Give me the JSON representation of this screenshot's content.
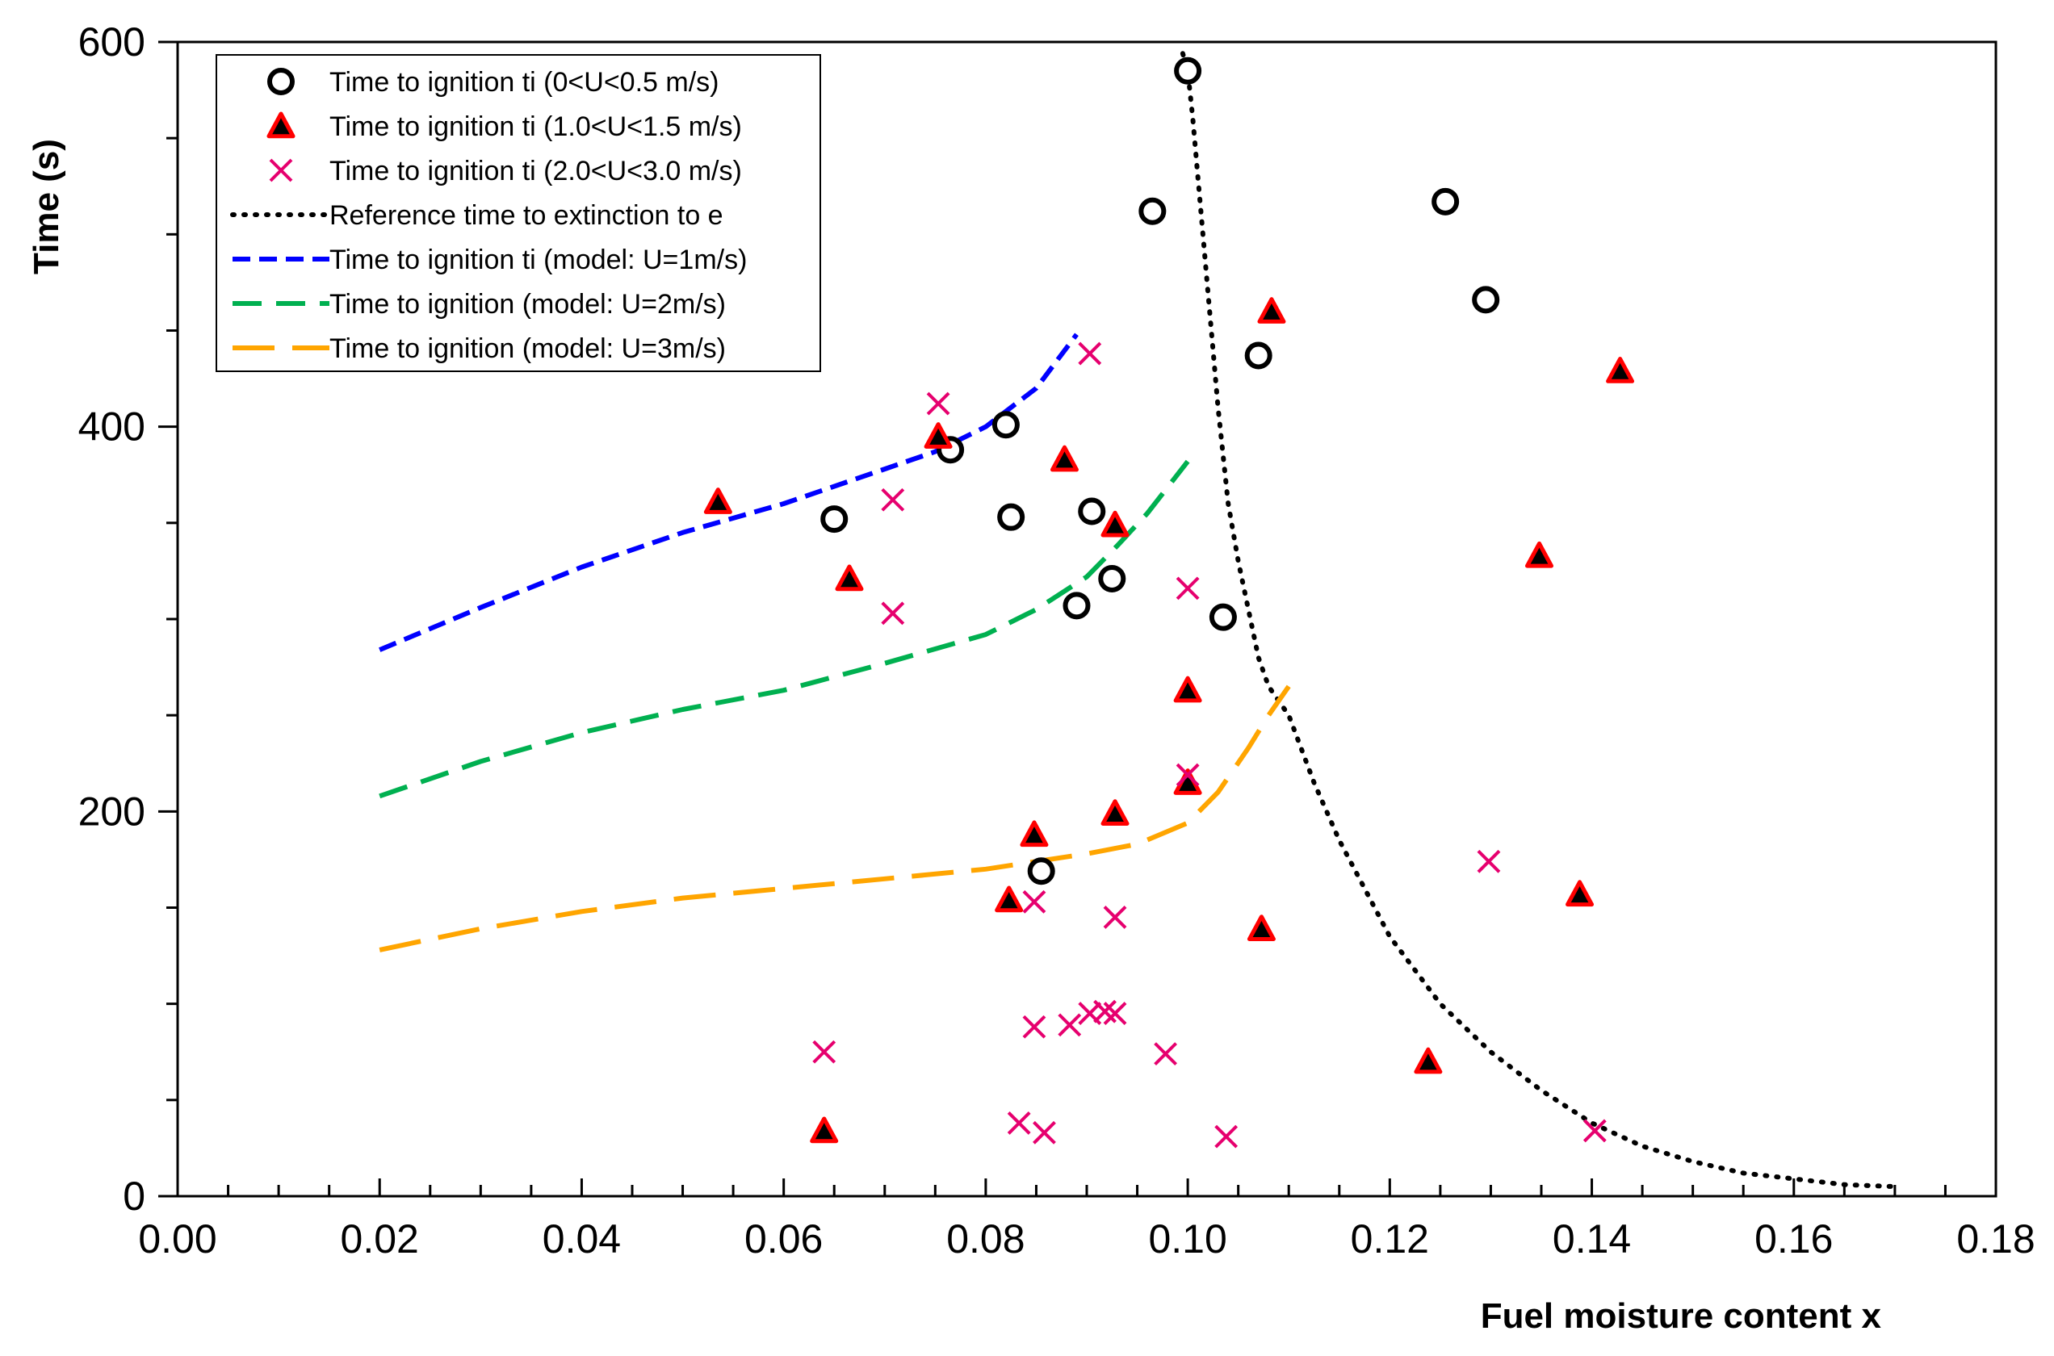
{
  "chart_data": {
    "type": "scatter",
    "title": "",
    "xlabel": "Fuel moisture content x",
    "ylabel": "Time (s)",
    "xlim": [
      0,
      0.18
    ],
    "ylim": [
      0,
      600
    ],
    "x_ticks": [
      "0.00",
      "0.02",
      "0.04",
      "0.06",
      "0.08",
      "0.10",
      "0.12",
      "0.14",
      "0.16",
      "0.18"
    ],
    "y_ticks": [
      "0",
      "200",
      "400",
      "600"
    ],
    "legend_position": "top-left",
    "series": [
      {
        "name": "Time to ignition ti (0<U<0.5 m/s)",
        "kind": "scatter",
        "marker": "circle",
        "color": "#000000",
        "points": [
          [
            0.065,
            352
          ],
          [
            0.0765,
            388
          ],
          [
            0.082,
            401
          ],
          [
            0.0825,
            353
          ],
          [
            0.0855,
            169
          ],
          [
            0.089,
            307
          ],
          [
            0.0905,
            356
          ],
          [
            0.0925,
            321
          ],
          [
            0.0965,
            512
          ],
          [
            0.1,
            585
          ],
          [
            0.1035,
            301
          ],
          [
            0.107,
            437
          ],
          [
            0.1255,
            517
          ],
          [
            0.1295,
            466
          ]
        ]
      },
      {
        "name": "Time to ignition ti (1.0<U<1.5 m/s)",
        "kind": "scatter",
        "marker": "triangle",
        "color": "#ff0000",
        "points": [
          [
            0.0535,
            361
          ],
          [
            0.064,
            34
          ],
          [
            0.0665,
            321
          ],
          [
            0.0753,
            395
          ],
          [
            0.0823,
            154
          ],
          [
            0.0848,
            188
          ],
          [
            0.0878,
            383
          ],
          [
            0.0928,
            349
          ],
          [
            0.0928,
            199
          ],
          [
            0.1,
            263
          ],
          [
            0.1,
            215
          ],
          [
            0.1073,
            139
          ],
          [
            0.1083,
            460
          ],
          [
            0.1238,
            70
          ],
          [
            0.1348,
            333
          ],
          [
            0.1388,
            157
          ],
          [
            0.1428,
            429
          ]
        ]
      },
      {
        "name": "Time to ignition ti (2.0<U<3.0 m/s)",
        "kind": "scatter",
        "marker": "x",
        "color": "#e6006e",
        "points": [
          [
            0.064,
            75
          ],
          [
            0.0708,
            362
          ],
          [
            0.0708,
            303
          ],
          [
            0.0753,
            412
          ],
          [
            0.0833,
            38
          ],
          [
            0.0848,
            153
          ],
          [
            0.0848,
            88
          ],
          [
            0.0858,
            33
          ],
          [
            0.0883,
            89
          ],
          [
            0.0903,
            438
          ],
          [
            0.0903,
            95
          ],
          [
            0.0918,
            96
          ],
          [
            0.0928,
            145
          ],
          [
            0.0928,
            95
          ],
          [
            0.0978,
            74
          ],
          [
            0.1,
            316
          ],
          [
            0.1,
            219
          ],
          [
            0.1038,
            31
          ],
          [
            0.1298,
            174
          ],
          [
            0.1403,
            34
          ]
        ]
      },
      {
        "name": "Reference time to extinction to e",
        "kind": "line",
        "dash": "dotted",
        "color": "#000000",
        "points": [
          [
            0.0995,
            594
          ],
          [
            0.1,
            585
          ],
          [
            0.1005,
            560
          ],
          [
            0.101,
            530
          ],
          [
            0.1015,
            500
          ],
          [
            0.102,
            470
          ],
          [
            0.1025,
            440
          ],
          [
            0.103,
            410
          ],
          [
            0.1035,
            385
          ],
          [
            0.104,
            360
          ],
          [
            0.105,
            330
          ],
          [
            0.106,
            305
          ],
          [
            0.107,
            280
          ],
          [
            0.108,
            265
          ],
          [
            0.11,
            250
          ],
          [
            0.1125,
            215
          ],
          [
            0.115,
            185
          ],
          [
            0.1175,
            160
          ],
          [
            0.12,
            135
          ],
          [
            0.125,
            100
          ],
          [
            0.13,
            75
          ],
          [
            0.135,
            55
          ],
          [
            0.14,
            38
          ],
          [
            0.145,
            26
          ],
          [
            0.15,
            18
          ],
          [
            0.155,
            12
          ],
          [
            0.16,
            9
          ],
          [
            0.165,
            6
          ],
          [
            0.17,
            5
          ]
        ]
      },
      {
        "name": "Time to ignition ti (model: U=1m/s)",
        "kind": "line",
        "dash": "short-dash",
        "color": "#0000ff",
        "points": [
          [
            0.02,
            284
          ],
          [
            0.03,
            306
          ],
          [
            0.04,
            327
          ],
          [
            0.05,
            345
          ],
          [
            0.06,
            360
          ],
          [
            0.07,
            378
          ],
          [
            0.075,
            387
          ],
          [
            0.08,
            400
          ],
          [
            0.085,
            420
          ],
          [
            0.089,
            448
          ]
        ]
      },
      {
        "name": "Time to  ignition (model: U=2m/s)",
        "kind": "line",
        "dash": "medium-dash",
        "color": "#00b050",
        "points": [
          [
            0.02,
            208
          ],
          [
            0.03,
            226
          ],
          [
            0.04,
            241
          ],
          [
            0.05,
            253
          ],
          [
            0.06,
            263
          ],
          [
            0.07,
            277
          ],
          [
            0.08,
            292
          ],
          [
            0.085,
            305
          ],
          [
            0.09,
            322
          ],
          [
            0.093,
            338
          ],
          [
            0.096,
            355
          ],
          [
            0.1,
            382
          ]
        ]
      },
      {
        "name": "Time to ignition (model: U=3m/s)",
        "kind": "line",
        "dash": "long-dash",
        "color": "#ffa500",
        "points": [
          [
            0.02,
            128
          ],
          [
            0.03,
            139
          ],
          [
            0.04,
            148
          ],
          [
            0.05,
            155
          ],
          [
            0.06,
            160
          ],
          [
            0.07,
            165
          ],
          [
            0.08,
            170
          ],
          [
            0.09,
            178
          ],
          [
            0.095,
            183
          ],
          [
            0.1,
            194
          ],
          [
            0.103,
            210
          ],
          [
            0.106,
            233
          ],
          [
            0.108,
            250
          ],
          [
            0.11,
            265
          ]
        ]
      }
    ]
  }
}
